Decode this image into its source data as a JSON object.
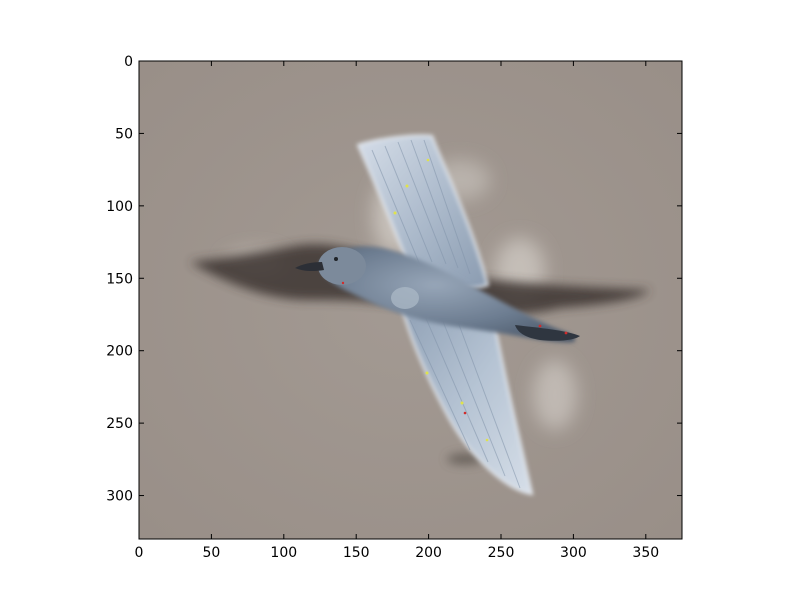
{
  "image": {
    "subject": "gull-in-flight",
    "background_color": "#9e948d",
    "bird_body_color": "#6f7f92",
    "bird_wing_color": "#b9c6d6",
    "shadow_color": "#3a3430"
  },
  "axes": {
    "xlim": [
      0,
      375
    ],
    "ylim": [
      330,
      0
    ],
    "x_ticks": [
      {
        "value": 0,
        "label": "0"
      },
      {
        "value": 50,
        "label": "50"
      },
      {
        "value": 100,
        "label": "100"
      },
      {
        "value": 150,
        "label": "150"
      },
      {
        "value": 200,
        "label": "200"
      },
      {
        "value": 250,
        "label": "250"
      },
      {
        "value": 300,
        "label": "300"
      },
      {
        "value": 350,
        "label": "350"
      }
    ],
    "y_ticks": [
      {
        "value": 0,
        "label": "0"
      },
      {
        "value": 50,
        "label": "50"
      },
      {
        "value": 100,
        "label": "100"
      },
      {
        "value": 150,
        "label": "150"
      },
      {
        "value": 200,
        "label": "200"
      },
      {
        "value": 250,
        "label": "250"
      },
      {
        "value": 300,
        "label": "300"
      }
    ]
  }
}
